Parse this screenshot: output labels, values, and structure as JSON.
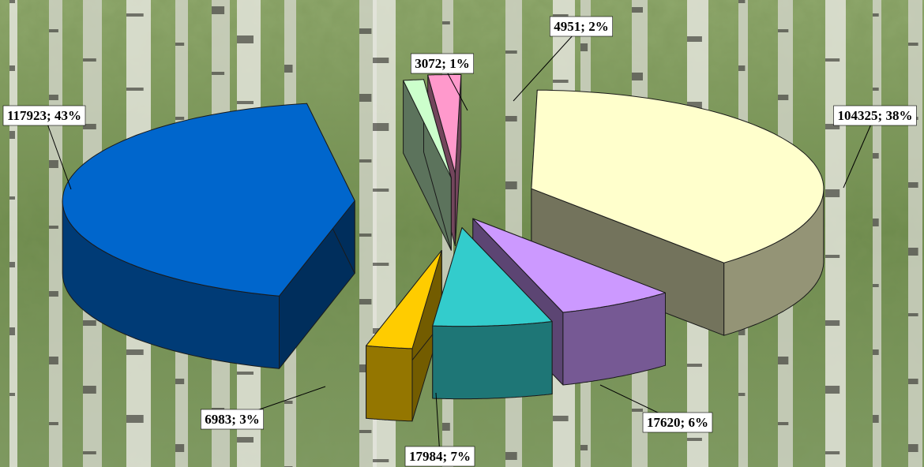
{
  "chart_data": {
    "type": "pie",
    "style": "3d-exploded",
    "title": "",
    "legend": "none",
    "background": "birch-forest-photo",
    "slices": [
      {
        "value": 104325,
        "percent": 38,
        "label": "104325; 38%",
        "color": "#ffffcc"
      },
      {
        "value": 17620,
        "percent": 6,
        "label": "17620; 6%",
        "color": "#cc99ff"
      },
      {
        "value": 17984,
        "percent": 7,
        "label": "17984; 7%",
        "color": "#33cccc"
      },
      {
        "value": 6983,
        "percent": 3,
        "label": "6983; 3%",
        "color": "#ffcc00"
      },
      {
        "value": 117923,
        "percent": 43,
        "label": "117923; 43%",
        "color": "#0066cc"
      },
      {
        "value": 3072,
        "percent": 1,
        "label": "3072; 1%",
        "color": "#ccffcc"
      },
      {
        "value": 4951,
        "percent": 2,
        "label": "4951; 2%",
        "color": "#ff99cc"
      }
    ]
  }
}
